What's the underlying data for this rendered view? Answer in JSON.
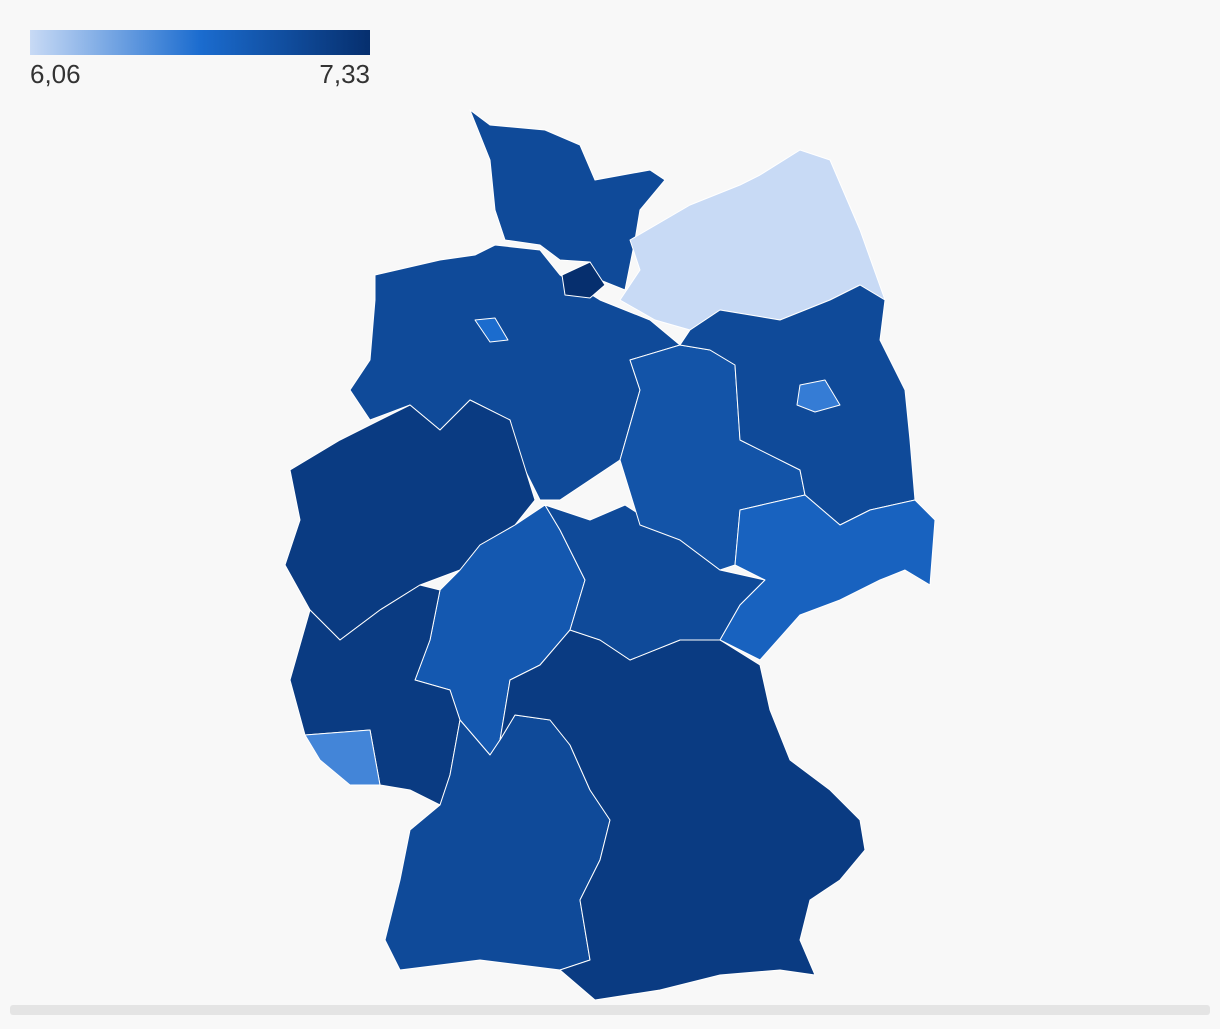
{
  "map": {
    "colorlim": [
      6.06,
      7.33
    ],
    "colors": [
      "#c8daf5",
      "#1b6ccf",
      "#062f6e"
    ],
    "ticks": [
      {
        "value": 6.06,
        "label": "6,06"
      },
      {
        "value": 7.33,
        "label": "7,33"
      }
    ],
    "values": [
      7.05,
      7.33,
      6.06,
      7.05,
      6.7,
      7.2,
      6.9,
      7.2,
      6.55,
      7.05,
      7.2,
      7.05,
      6.95,
      7.05,
      6.6,
      6.8
    ]
  }
}
